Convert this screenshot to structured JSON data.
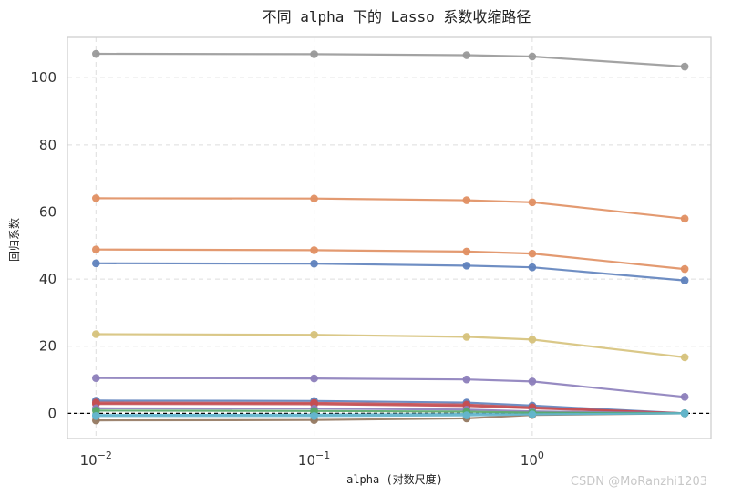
{
  "chart_data": {
    "type": "line",
    "title": "不同 alpha 下的 Lasso 系数收缩路径",
    "xlabel": "alpha (对数尺度)",
    "ylabel": "回归系数",
    "x_scale": "log",
    "x": [
      0.01,
      0.1,
      0.5,
      1,
      5
    ],
    "xticks": [
      {
        "value": 0.01,
        "base": "10",
        "exp": "−2"
      },
      {
        "value": 0.1,
        "base": "10",
        "exp": "−1"
      },
      {
        "value": 1,
        "base": "10",
        "exp": "0"
      }
    ],
    "xlim": [
      0.0074,
      6.6
    ],
    "ylim": [
      -7.5,
      112
    ],
    "yticks": [
      0,
      20,
      40,
      60,
      80,
      100
    ],
    "grid": true,
    "zero_line": true,
    "series": [
      {
        "color": "#999999",
        "values": [
          107.1,
          107.0,
          106.7,
          106.3,
          103.3
        ]
      },
      {
        "color": "#e08f62",
        "values": [
          64.1,
          64.0,
          63.5,
          62.9,
          58.0
        ]
      },
      {
        "color": "#e08f62",
        "values": [
          48.8,
          48.6,
          48.2,
          47.6,
          43.0
        ]
      },
      {
        "color": "#5f82bd",
        "values": [
          44.7,
          44.6,
          44.0,
          43.5,
          39.6
        ]
      },
      {
        "color": "#d6c27b",
        "values": [
          23.6,
          23.4,
          22.8,
          22.0,
          16.7
        ]
      },
      {
        "color": "#8c7ebb",
        "values": [
          10.5,
          10.4,
          10.1,
          9.5,
          4.9
        ]
      },
      {
        "color": "#5f82bd",
        "values": [
          3.8,
          3.7,
          3.2,
          2.3,
          0.0
        ]
      },
      {
        "color": "#c44e52",
        "values": [
          3.2,
          3.1,
          2.6,
          1.8,
          0.0
        ]
      },
      {
        "color": "#c44e52",
        "values": [
          2.8,
          2.7,
          2.2,
          1.5,
          0.0
        ]
      },
      {
        "color": "#937860",
        "values": [
          -2.1,
          -2.0,
          -1.5,
          -0.5,
          0.0
        ]
      },
      {
        "color": "#8c7ebb",
        "values": [
          1.5,
          1.4,
          1.1,
          0.6,
          0.0
        ]
      },
      {
        "color": "#64b5cd",
        "values": [
          -0.5,
          -0.4,
          -0.2,
          0.0,
          0.0
        ]
      },
      {
        "color": "#55a868",
        "values": [
          0.8,
          0.7,
          0.5,
          0.2,
          0.0
        ]
      },
      {
        "color": "#64b5cd",
        "values": [
          -0.8,
          -0.8,
          -0.6,
          -0.3,
          0.0
        ]
      }
    ]
  },
  "watermark": "CSDN @MoRanzhi1203"
}
